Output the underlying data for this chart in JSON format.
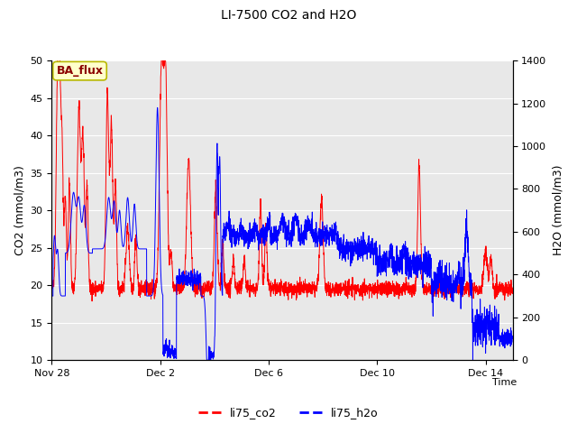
{
  "title": "LI-7500 CO2 and H2O",
  "xlabel": "Time",
  "ylabel_left": "CO2 (mmol/m3)",
  "ylabel_right": "H2O (mmol/m3)",
  "ylim_left": [
    10,
    50
  ],
  "ylim_right": [
    0,
    1400
  ],
  "background_color": "#e8e8e8",
  "annotation_text": "BA_flux",
  "annotation_bg": "#ffffcc",
  "annotation_border": "#b8b800",
  "line_co2_color": "red",
  "line_h2o_color": "blue",
  "legend_label_co2": "li75_co2",
  "legend_label_h2o": "li75_h2o",
  "xtick_labels": [
    "Nov 28",
    "Dec 2",
    "Dec 6",
    "Dec 10",
    "Dec 14"
  ],
  "xtick_positions": [
    0,
    4,
    8,
    12,
    16
  ],
  "figsize": [
    6.4,
    4.8
  ],
  "dpi": 100
}
